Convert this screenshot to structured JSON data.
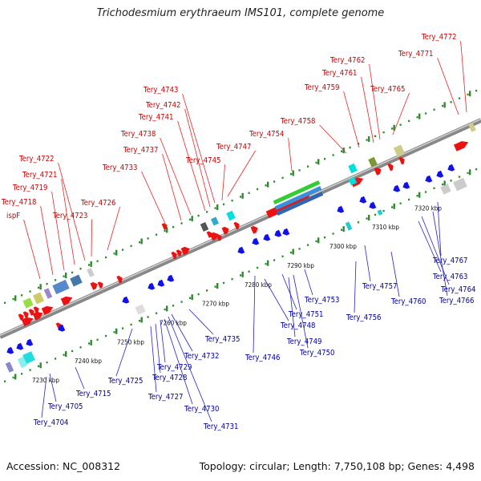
{
  "title": "Trichodesmium erythraeum IMS101, complete genome",
  "footer": {
    "accession": "Accession: NC_008312",
    "summary": "Topology: circular; Length: 7,750,108 bp; Genes: 4,498"
  },
  "scale_ticks": [
    "7230 kbp",
    "7240 kbp",
    "7250 kbp",
    "7260 kbp",
    "7270 kbp",
    "7280 kbp",
    "7290 kbp",
    "7300 kbp",
    "7310 kbp",
    "7320 kbp"
  ],
  "top_labels": [
    "ispF",
    "Tery_4718",
    "Tery_4719",
    "Tery_4721",
    "Tery_4722",
    "Tery_4723",
    "Tery_4726",
    "Tery_4733",
    "Tery_4737",
    "Tery_4738",
    "Tery_4741",
    "Tery_4742",
    "Tery_4743",
    "Tery_4745",
    "Tery_4747",
    "Tery_4754",
    "Tery_4758",
    "Tery_4759",
    "Tery_4761",
    "Tery_4762",
    "Tery_4765",
    "Tery_4771",
    "Tery_4772"
  ],
  "bottom_labels": [
    "Tery_4704",
    "Tery_4705",
    "Tery_4715",
    "Tery_4725",
    "Tery_4727",
    "Tery_4728",
    "Tery_4729",
    "Tery_4730",
    "Tery_4731",
    "Tery_4732",
    "Tery_4735",
    "Tery_4746",
    "Tery_4748",
    "Tery_4749",
    "Tery_4750",
    "Tery_4751",
    "Tery_4753",
    "Tery_4756",
    "Tery_4757",
    "Tery_4760",
    "Tery_4763",
    "Tery_4764",
    "Tery_4766",
    "Tery_4767"
  ]
}
